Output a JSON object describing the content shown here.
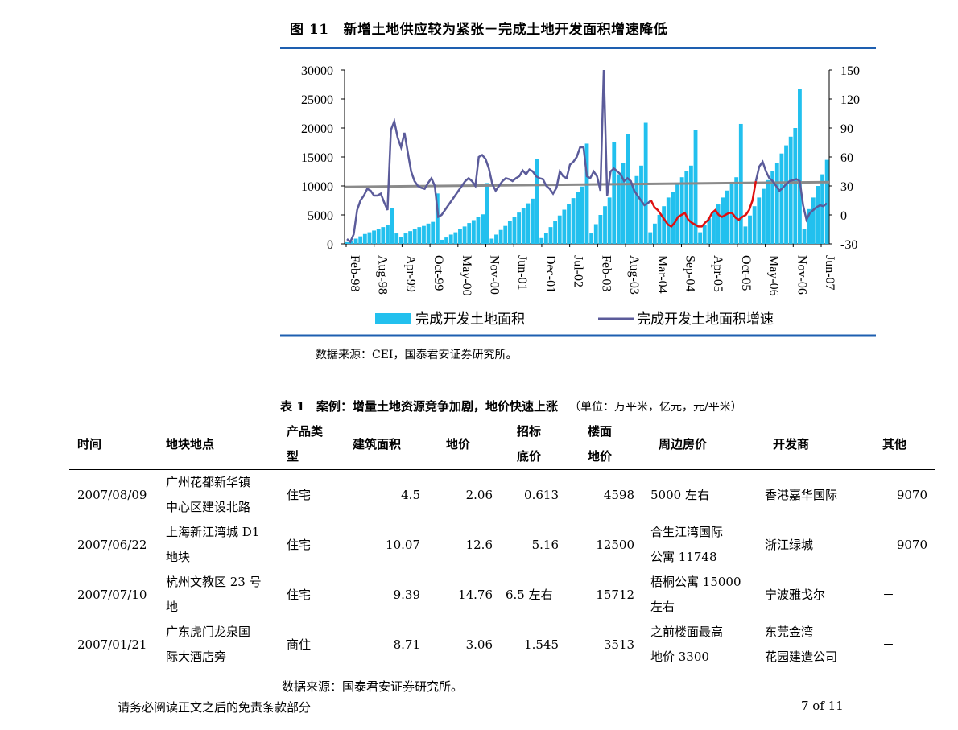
{
  "figure": {
    "number": "图 11",
    "title": "新增土地供应较为紧张－完成土地开发面积增速降低",
    "source": "数据来源：CEI，国泰君安证券研究所。"
  },
  "chart_data": {
    "type": "bar",
    "x_ticks": [
      "Feb-98",
      "Aug-98",
      "Apr-99",
      "Oct-99",
      "May-00",
      "Nov-00",
      "Jun-01",
      "Dec-01",
      "Jul-02",
      "Feb-03",
      "Aug-03",
      "Mar-04",
      "Sep-04",
      "Apr-05",
      "Oct-05",
      "May-06",
      "Nov-06",
      "Jun-07"
    ],
    "y_left_ticks": [
      "30000",
      "25000",
      "20000",
      "15000",
      "10000",
      "5000",
      "0"
    ],
    "y_right_ticks": [
      "150",
      "120",
      "90",
      "60",
      "30",
      "0",
      "-30"
    ],
    "y_left_lim": [
      0,
      30000
    ],
    "y_right_lim": [
      -30,
      150
    ],
    "series": [
      {
        "name": "完成开发土地面积",
        "axis": "left",
        "color": "#22c0ee",
        "values": [
          300,
          500,
          900,
          1300,
          1700,
          2000,
          2300,
          2600,
          2900,
          3200,
          6200,
          1800,
          1200,
          1800,
          2200,
          2600,
          2900,
          3100,
          3500,
          3800,
          8700,
          700,
          1100,
          1600,
          2000,
          2500,
          3000,
          3600,
          4100,
          4600,
          5100,
          10500,
          900,
          1600,
          2400,
          3100,
          3900,
          4600,
          5400,
          6200,
          7000,
          7800,
          14700,
          1000,
          1900,
          2900,
          3900,
          4900,
          5900,
          6900,
          7900,
          8900,
          9900,
          17300,
          1800,
          3400,
          5000,
          6500,
          8000,
          17500,
          12000,
          14000,
          19000,
          10500,
          11700,
          13500,
          20900,
          2000,
          3500,
          5000,
          6500,
          8000,
          9000,
          10500,
          11500,
          12500,
          13500,
          19700,
          2000,
          3200,
          4400,
          5600,
          6800,
          8000,
          9200,
          10300,
          11500,
          20700,
          3000,
          4900,
          6500,
          8000,
          9500,
          11000,
          12500,
          14000,
          15600,
          17000,
          18500,
          20000,
          26700,
          2600,
          6000,
          8000,
          10000,
          12000,
          14500
        ]
      },
      {
        "name": "完成开发土地面积增速",
        "axis": "right",
        "color": "#5b5b9a",
        "highlight_color": "#e01010",
        "highlight_range": [
          68,
          91
        ],
        "values": [
          -25,
          -28,
          -20,
          5,
          15,
          20,
          27,
          25,
          20,
          20,
          22,
          13,
          5,
          88,
          97,
          80,
          70,
          85,
          65,
          45,
          35,
          30,
          28,
          27,
          33,
          38,
          30,
          -2,
          0,
          5,
          10,
          15,
          20,
          25,
          30,
          35,
          38,
          35,
          30,
          60,
          62,
          58,
          48,
          32,
          25,
          30,
          35,
          38,
          37,
          35,
          38,
          40,
          46,
          42,
          47,
          45,
          40,
          38,
          37,
          30,
          27,
          22,
          28,
          45,
          40,
          38,
          52,
          55,
          60,
          70,
          70,
          40,
          38,
          45,
          40,
          25,
          150,
          20,
          45,
          48,
          45,
          42,
          35,
          38,
          35,
          25,
          20,
          15,
          10,
          12,
          15,
          8,
          5,
          0,
          -5,
          -10,
          -12,
          -8,
          -2,
          0,
          2,
          -5,
          -8,
          -10,
          -12,
          -12,
          -8,
          -5,
          2,
          5,
          0,
          -2,
          0,
          2,
          2,
          -3,
          -5,
          -2,
          0,
          5,
          15,
          35,
          50,
          55,
          45,
          38,
          35,
          30,
          25,
          28,
          32,
          35,
          36,
          37,
          35,
          10,
          -5,
          2,
          5,
          8,
          10,
          9,
          12
        ]
      },
      {
        "name": "trend",
        "axis": "right",
        "color": "#8a8a8a",
        "values": [
          29,
          34
        ]
      }
    ],
    "legend": [
      "完成开发土地面积",
      "完成开发土地面积增速"
    ],
    "legend_position": "bottom"
  },
  "table": {
    "title_num": "表 1",
    "title": "案例：增量土地资源竞争加剧，地价快速上涨",
    "unit": "（单位：万平米，亿元，元/平米）",
    "headers": {
      "time": "时间",
      "location": "地块地点",
      "product_l1": "产品类",
      "product_l2": "型",
      "area": "建筑面积",
      "price": "地价",
      "base_l1": "招标",
      "base_l2": "底价",
      "floor_l1": "楼面",
      "floor_l2": "地价",
      "nearby": "周边房价",
      "developer": "开发商",
      "other": "其他"
    },
    "rows": [
      {
        "time": "2007/08/09",
        "loc1": "广州花都新华镇",
        "loc2": "中心区建设北路",
        "type": "住宅",
        "area": "4.5",
        "price": "2.06",
        "base": "0.613",
        "floor": "4598",
        "near1": "5000 左右",
        "near2": "",
        "dev1": "香港嘉华国际",
        "dev2": "",
        "other": "9070"
      },
      {
        "time": "2007/06/22",
        "loc1": "上海新江湾城 D1",
        "loc2": "地块",
        "type": "住宅",
        "area": "10.07",
        "price": "12.6",
        "base": "5.16",
        "floor": "12500",
        "near1": "合生江湾国际",
        "near2": "公寓 11748",
        "dev1": "浙江绿城",
        "dev2": "",
        "other": "9070"
      },
      {
        "time": "2007/07/10",
        "loc1": "杭州文教区 23 号",
        "loc2": "地",
        "type": "住宅",
        "area": "9.39",
        "price": "14.76",
        "base": "6.5 左右",
        "floor": "15712",
        "near1": "梧桐公寓 15000",
        "near2": "左右",
        "dev1": "宁波雅戈尔",
        "dev2": "",
        "other": "－"
      },
      {
        "time": "2007/01/21",
        "loc1": "广东虎门龙泉国",
        "loc2": "际大酒店旁",
        "type": "商住",
        "area": "8.71",
        "price": "3.06",
        "base": "1.545",
        "floor": "3513",
        "near1": "之前楼面最高",
        "near2": "地价 3300",
        "dev1": "东莞金湾",
        "dev2": "花园建造公司",
        "other": "－"
      }
    ],
    "source": "数据来源：国泰君安证券研究所。"
  },
  "footer": {
    "disclaimer": "请务必阅读正文之后的免责条款部分",
    "page": "7 of 11"
  }
}
